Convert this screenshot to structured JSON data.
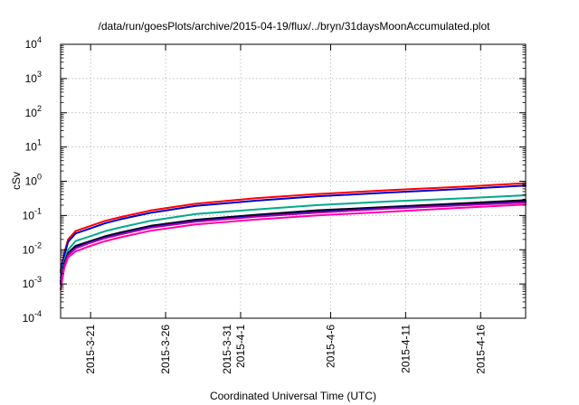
{
  "chart_data": {
    "type": "line",
    "title": "/data/run/goesPlots/archive/2015-04-19/flux/../bryn/31daysMoonAccumulated.plot",
    "xlabel": "Coordinated Universal Time (UTC)",
    "ylabel": "cSv",
    "x_range": [
      "2015-03-19",
      "2015-04-19"
    ],
    "ylim": [
      0.0001,
      10000
    ],
    "y_scale": "log",
    "grid": true,
    "x_ticks": [
      {
        "date": "2015-03-21",
        "lines": [
          "2015-3-21"
        ]
      },
      {
        "date": "2015-03-26",
        "lines": [
          "2015-3-26"
        ]
      },
      {
        "date": "2015-03-31",
        "lines": [
          "2015-3-31",
          "2015-4-1"
        ]
      },
      {
        "date": "2015-04-06",
        "lines": [
          "2015-4-6"
        ]
      },
      {
        "date": "2015-04-11",
        "lines": [
          "2015-4-11"
        ]
      },
      {
        "date": "2015-04-16",
        "lines": [
          "2015-4-16"
        ]
      }
    ],
    "y_ticks": [
      {
        "base": "10",
        "exp": "-4",
        "value": 0.0001
      },
      {
        "base": "10",
        "exp": "-3",
        "value": 0.001
      },
      {
        "base": "10",
        "exp": "-2",
        "value": 0.01
      },
      {
        "base": "10",
        "exp": "-1",
        "value": 0.1
      },
      {
        "base": "10",
        "exp": "0",
        "value": 1
      },
      {
        "base": "10",
        "exp": "1",
        "value": 10
      },
      {
        "base": "10",
        "exp": "2",
        "value": 100
      },
      {
        "base": "10",
        "exp": "3",
        "value": 1000
      },
      {
        "base": "10",
        "exp": "4",
        "value": 10000
      }
    ],
    "x": [
      "2015-03-19T00:00",
      "2015-03-19T06:00",
      "2015-03-19T12:00",
      "2015-03-20T00:00",
      "2015-03-21T00:00",
      "2015-03-22T00:00",
      "2015-03-23T00:00",
      "2015-03-25T00:00",
      "2015-03-28T00:00",
      "2015-04-01T00:00",
      "2015-04-05T00:00",
      "2015-04-10T00:00",
      "2015-04-15T00:00",
      "2015-04-19T00:00"
    ],
    "series": [
      {
        "color": "#ff0000",
        "values": [
          0.0025,
          0.008,
          0.02,
          0.035,
          0.05,
          0.07,
          0.09,
          0.14,
          0.22,
          0.32,
          0.42,
          0.55,
          0.7,
          0.88
        ]
      },
      {
        "color": "#0000cc",
        "values": [
          0.0022,
          0.007,
          0.017,
          0.03,
          0.042,
          0.06,
          0.078,
          0.12,
          0.19,
          0.27,
          0.36,
          0.47,
          0.6,
          0.75
        ]
      },
      {
        "color": "#00aa88",
        "values": [
          0.0015,
          0.005,
          0.01,
          0.018,
          0.025,
          0.035,
          0.045,
          0.07,
          0.11,
          0.15,
          0.2,
          0.26,
          0.32,
          0.39
        ]
      },
      {
        "color": "#000000",
        "values": [
          0.0012,
          0.004,
          0.008,
          0.013,
          0.018,
          0.025,
          0.032,
          0.05,
          0.075,
          0.105,
          0.14,
          0.18,
          0.23,
          0.28
        ]
      },
      {
        "color": "#000088",
        "values": [
          0.0011,
          0.0037,
          0.0075,
          0.012,
          0.017,
          0.023,
          0.03,
          0.047,
          0.07,
          0.098,
          0.13,
          0.17,
          0.21,
          0.26
        ]
      },
      {
        "color": "#aa00aa",
        "values": [
          0.001,
          0.0034,
          0.007,
          0.011,
          0.016,
          0.022,
          0.028,
          0.044,
          0.066,
          0.092,
          0.12,
          0.16,
          0.2,
          0.24
        ]
      },
      {
        "color": "#ff00aa",
        "values": [
          0.0007,
          0.003,
          0.006,
          0.009,
          0.013,
          0.018,
          0.023,
          0.036,
          0.055,
          0.076,
          0.1,
          0.13,
          0.17,
          0.21
        ]
      }
    ]
  }
}
